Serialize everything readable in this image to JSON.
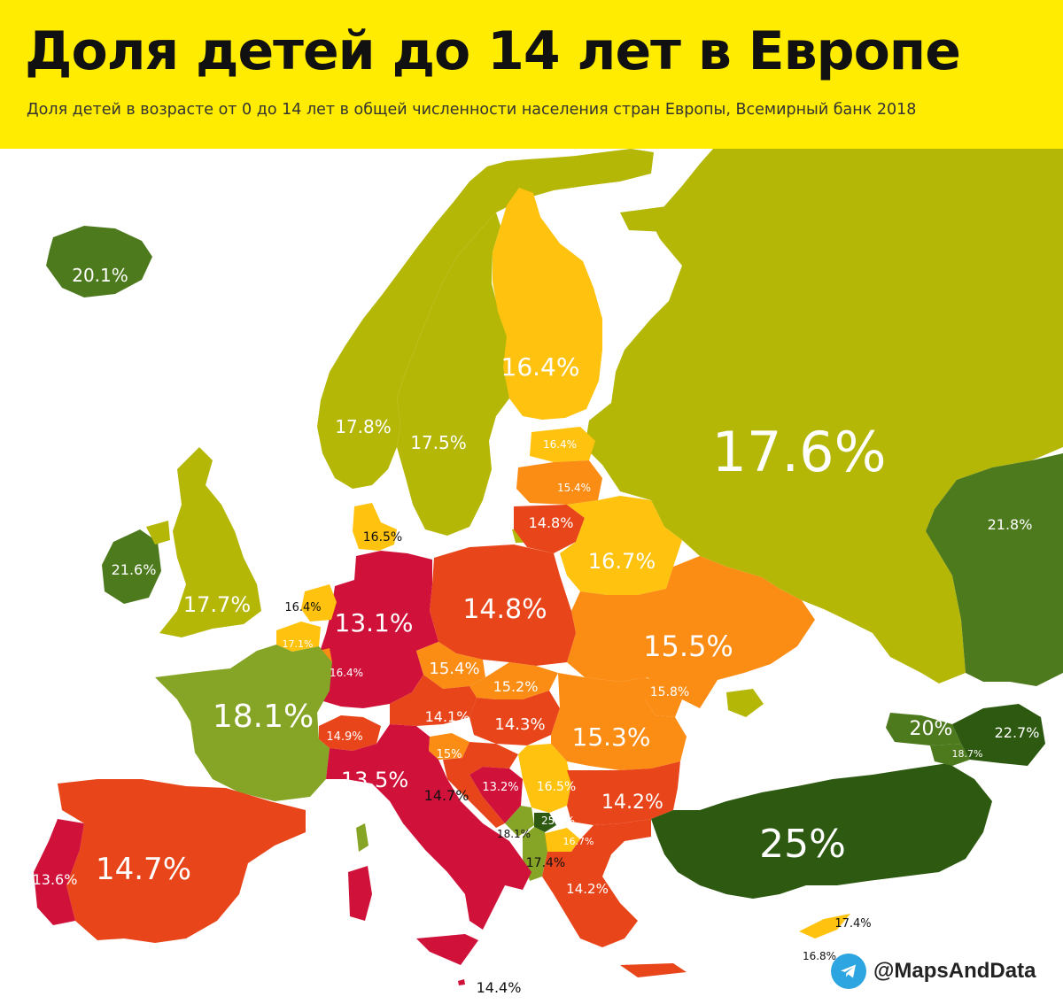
{
  "header": {
    "title": "Доля детей до 14 лет в Европе",
    "subtitle": "Доля детей в возрасте от 0 до 14 лет в общей численности населения стран Европы, Всемирный банк 2018"
  },
  "legend_colors": {
    "darkest_green": "#2d5a10",
    "dark_green": "#4e7a1e",
    "green": "#86a526",
    "olive": "#b5b707",
    "yellow": "#ffc20e",
    "orange": "#fb8c14",
    "red_orange": "#e8451a",
    "crimson": "#d0123b",
    "header_bg": "#ffec00"
  },
  "map_labels": [
    {
      "country": "Iceland",
      "value": "20.1%"
    },
    {
      "country": "Norway",
      "value": "17.8%"
    },
    {
      "country": "Sweden",
      "value": "17.5%"
    },
    {
      "country": "Finland",
      "value": "16.4%"
    },
    {
      "country": "Russia",
      "value": "17.6%"
    },
    {
      "country": "Estonia",
      "value": "16.4%"
    },
    {
      "country": "Latvia",
      "value": "15.4%"
    },
    {
      "country": "Lithuania",
      "value": "14.8%"
    },
    {
      "country": "Belarus",
      "value": "16.7%"
    },
    {
      "country": "Kazakhstan",
      "value": "21.8%"
    },
    {
      "country": "Denmark",
      "value": "16.5%"
    },
    {
      "country": "Ireland",
      "value": "21.6%"
    },
    {
      "country": "United Kingdom",
      "value": "17.7%"
    },
    {
      "country": "Netherlands",
      "value": "16.4%"
    },
    {
      "country": "Belgium",
      "value": "17.1%"
    },
    {
      "country": "Luxembourg",
      "value": "16.4%"
    },
    {
      "country": "Germany",
      "value": "13.1%"
    },
    {
      "country": "Poland",
      "value": "14.8%"
    },
    {
      "country": "Ukraine",
      "value": "15.5%"
    },
    {
      "country": "Czechia",
      "value": "15.4%"
    },
    {
      "country": "Slovakia",
      "value": "15.2%"
    },
    {
      "country": "Moldova",
      "value": "15.8%"
    },
    {
      "country": "France",
      "value": "18.1%"
    },
    {
      "country": "Austria",
      "value": "14.1%"
    },
    {
      "country": "Hungary",
      "value": "14.3%"
    },
    {
      "country": "Romania",
      "value": "15.3%"
    },
    {
      "country": "Switzerland",
      "value": "14.9%"
    },
    {
      "country": "Slovenia",
      "value": "15%"
    },
    {
      "country": "Georgia",
      "value": "20%"
    },
    {
      "country": "Azerbaijan",
      "value": "22.7%"
    },
    {
      "country": "Armenia",
      "value": "18.7%"
    },
    {
      "country": "Italy",
      "value": "13.5%"
    },
    {
      "country": "Croatia",
      "value": "14.7%"
    },
    {
      "country": "Bosnia and Herzegovina",
      "value": "13.2%"
    },
    {
      "country": "Serbia",
      "value": "16.5%"
    },
    {
      "country": "Bulgaria",
      "value": "14.2%"
    },
    {
      "country": "Montenegro",
      "value": "18.1%"
    },
    {
      "country": "Kosovo",
      "value": "25.8%"
    },
    {
      "country": "North Macedonia",
      "value": "16.7%"
    },
    {
      "country": "Albania",
      "value": "17.4%"
    },
    {
      "country": "Turkey",
      "value": "25%"
    },
    {
      "country": "Portugal",
      "value": "13.6%"
    },
    {
      "country": "Spain",
      "value": "14.7%"
    },
    {
      "country": "Greece",
      "value": "14.2%"
    },
    {
      "country": "Cyprus",
      "value": "17.4%"
    },
    {
      "country": "Northern Cyprus",
      "value": "16.8%"
    },
    {
      "country": "Malta",
      "value": "14.4%"
    }
  ],
  "credit": {
    "icon": "telegram-icon",
    "text": "@MapsAndData"
  }
}
